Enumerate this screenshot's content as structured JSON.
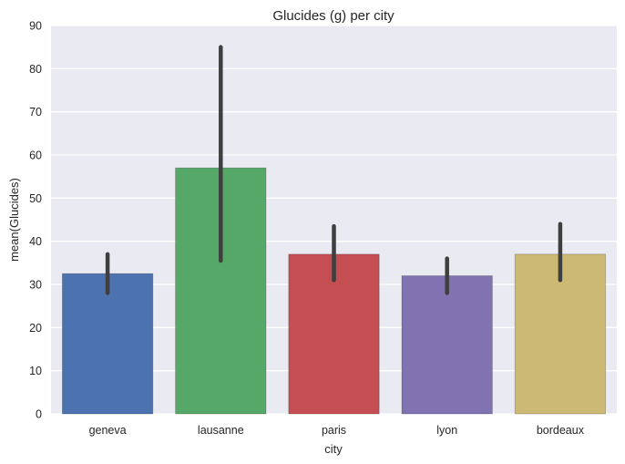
{
  "chart_data": {
    "type": "bar",
    "title": "Glucides (g) per city",
    "xlabel": "city",
    "ylabel": "mean(Glucides)",
    "categories": [
      "geneva",
      "lausanne",
      "paris",
      "lyon",
      "bordeaux"
    ],
    "values": [
      32.5,
      57.0,
      37.0,
      32.0,
      37.0
    ],
    "error_bars": [
      {
        "low": 28.0,
        "high": 37.0
      },
      {
        "low": 35.5,
        "high": 85.0
      },
      {
        "low": 31.0,
        "high": 43.5
      },
      {
        "low": 28.0,
        "high": 36.0
      },
      {
        "low": 31.0,
        "high": 44.0
      }
    ],
    "colors": [
      "#4c72b0",
      "#55a868",
      "#c44e52",
      "#8172b2",
      "#ccb974"
    ],
    "ylim": [
      0,
      90
    ],
    "yticks": [
      0,
      10,
      20,
      30,
      40,
      50,
      60,
      70,
      80,
      90
    ],
    "grid": true,
    "plot_background": "#eaeaf2",
    "error_bar_color": "#3f3f3f"
  }
}
